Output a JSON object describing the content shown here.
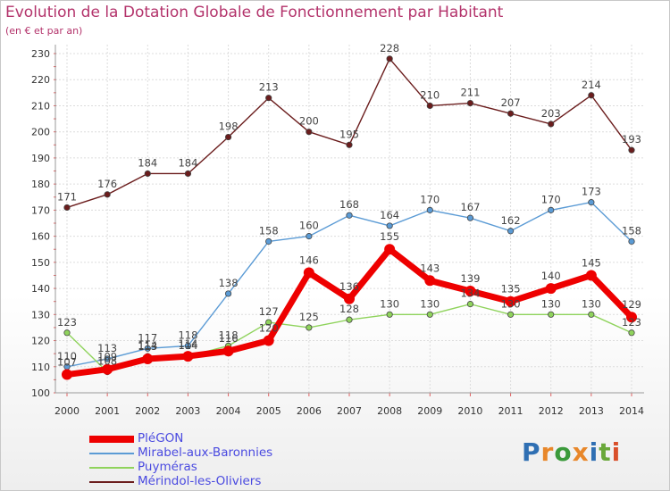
{
  "header": {
    "title": "Evolution de la Dotation Globale de Fonctionnement par Habitant",
    "subtitle": "(en € et par an)"
  },
  "logo": {
    "letters": [
      "P",
      "r",
      "o",
      "x",
      "i",
      "t",
      "i"
    ],
    "colors": [
      "#2f6fb3",
      "#e8872a",
      "#3b9a3b",
      "#e8872a",
      "#2f6fb3",
      "#6aa83a",
      "#d94f2a"
    ]
  },
  "chart_data": {
    "type": "line",
    "title": "Evolution de la Dotation Globale de Fonctionnement par Habitant",
    "subtitle": "(en € et par an)",
    "xlabel": "",
    "ylabel": "",
    "ylim": [
      100,
      230
    ],
    "yticks": [
      100,
      110,
      120,
      130,
      140,
      150,
      160,
      170,
      180,
      190,
      200,
      210,
      220,
      230
    ],
    "x": [
      "2000",
      "2001",
      "2002",
      "2003",
      "2004",
      "2005",
      "2006",
      "2007",
      "2008",
      "2009",
      "2010",
      "2011",
      "2012",
      "2013",
      "2014"
    ],
    "grid": true,
    "legend_position": "bottom-left",
    "series": [
      {
        "name": "Mérindol-les-Oliviers",
        "color": "#6b1d1d",
        "values": [
          171,
          176,
          184,
          184,
          198,
          213,
          200,
          195,
          228,
          210,
          211,
          207,
          203,
          214,
          193
        ]
      },
      {
        "name": "Mirabel-aux-Baronnies",
        "color": "#5b9bd5",
        "values": [
          110,
          113,
          117,
          118,
          138,
          158,
          160,
          168,
          164,
          170,
          167,
          162,
          170,
          173,
          158
        ]
      },
      {
        "name": "Puyméras",
        "color": "#8fd35c",
        "values": [
          123,
          108,
          114,
          114,
          118,
          127,
          125,
          128,
          130,
          130,
          134,
          130,
          130,
          130,
          123
        ]
      },
      {
        "name": "PléGON",
        "color": "#ee0000",
        "values": [
          107,
          109,
          113,
          114,
          116,
          120,
          146,
          136,
          155,
          143,
          139,
          135,
          140,
          145,
          129
        ]
      }
    ],
    "legend_order": [
      "PléGON",
      "Mirabel-aux-Baronnies",
      "Puyméras",
      "Mérindol-les-Oliviers"
    ]
  }
}
